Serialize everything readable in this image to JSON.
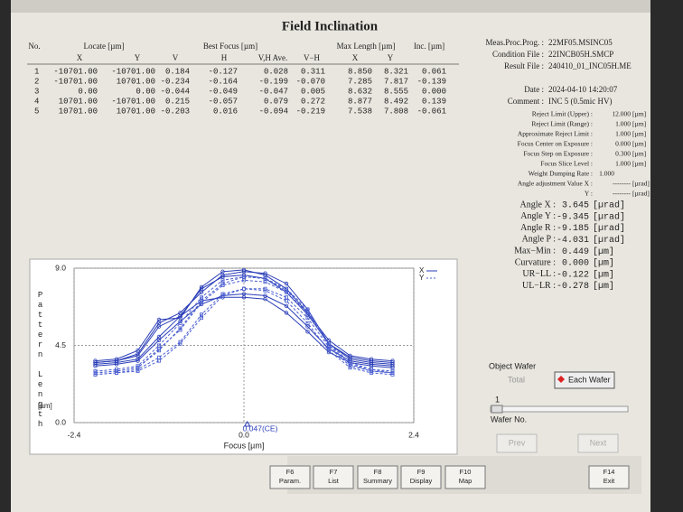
{
  "title": "Field Inclination",
  "table": {
    "headers": [
      "No.",
      "Locate [µm]",
      "Best Focus [µm]",
      "Max Length [µm]",
      "Inc. [µm]"
    ],
    "subheaders": [
      "X",
      "Y",
      "V",
      "H",
      "V,H Ave.",
      "V−H",
      "X",
      "Y"
    ],
    "rows": [
      [
        "1",
        "-10701.00",
        "-10701.00",
        "0.184",
        "-0.127",
        "0.028",
        "0.311",
        "8.850",
        "8.321",
        "0.061"
      ],
      [
        "2",
        "-10701.00",
        "10701.00",
        "-0.234",
        "-0.164",
        "-0.199",
        "-0.070",
        "7.285",
        "7.817",
        "-0.139"
      ],
      [
        "3",
        "0.00",
        "0.00",
        "-0.044",
        "-0.049",
        "-0.047",
        "0.005",
        "8.632",
        "8.555",
        "0.000"
      ],
      [
        "4",
        "10701.00",
        "-10701.00",
        "0.215",
        "-0.057",
        "0.079",
        "0.272",
        "8.877",
        "8.492",
        "0.139"
      ],
      [
        "5",
        "10701.00",
        "10701.00",
        "-0.203",
        "0.016",
        "-0.094",
        "-0.219",
        "7.538",
        "7.808",
        "-0.061"
      ]
    ]
  },
  "info": [
    {
      "label": "Meas.Proc.Prog. :",
      "value": "22MF05.MSINC05"
    },
    {
      "label": "Condition File :",
      "value": "22INCB05H.SMCP"
    },
    {
      "label": "Result File :",
      "value": "240410_01_INC05H.ME"
    },
    {
      "label": "Date :",
      "value": "2024-04-10 14:20:07"
    },
    {
      "label": "Comment :",
      "value": "INC 5 (0.5mic HV)"
    }
  ],
  "params": [
    {
      "label": "Reject Limit (Upper) :",
      "value": "12.000",
      "unit": "[µm]"
    },
    {
      "label": "Reject Limit (Range) :",
      "value": "1.000",
      "unit": "[µm]"
    },
    {
      "label": "Approximate Reject Limit :",
      "value": "1.000",
      "unit": "[µm]"
    },
    {
      "label": "Focus Center on Exposure :",
      "value": "0.000",
      "unit": "[µm]"
    },
    {
      "label": "Focus Step on Exposure :",
      "value": "0.300",
      "unit": "[µm]"
    },
    {
      "label": "Focus Slice Level :",
      "value": "1.000",
      "unit": "[µm]"
    },
    {
      "label": "Weight Dumping Rate :",
      "value": "1.000"
    },
    {
      "label": "Angle adjustment Value X :",
      "value": "--------",
      "unit": "[µrad]"
    },
    {
      "label": "Y :",
      "value": "--------",
      "unit": "[µrad]"
    }
  ],
  "results": [
    {
      "label": "Angle X :",
      "value": "3.645",
      "unit": "[µrad]"
    },
    {
      "label": "Angle Y :",
      "value": "-9.345",
      "unit": "[µrad]"
    },
    {
      "label": "Angle R :",
      "value": "-9.185",
      "unit": "[µrad]"
    },
    {
      "label": "Angle P :",
      "value": "-4.031",
      "unit": "[µrad]"
    },
    {
      "label": "Max−Min :",
      "value": "0.449",
      "unit": "[µm]"
    },
    {
      "label": "Curvature :",
      "value": "0.000",
      "unit": "[µm]"
    },
    {
      "label": "UR−LL :",
      "value": "-0.122",
      "unit": "[µm]"
    },
    {
      "label": "UL−LR :",
      "value": "-0.278",
      "unit": "[µm]"
    }
  ],
  "chart_data": {
    "type": "line",
    "y_label": "Pattern Length",
    "y_unit": "[µm]",
    "x_label": "Focus [µm]",
    "xlim": [
      -2.4,
      2.4
    ],
    "xticks": [
      -2.4,
      {
        "value": 0,
        "label": "0.0"
      },
      2.4
    ],
    "ylim": [
      0,
      9
    ],
    "yticks": [
      {
        "value": 0,
        "label": "0.0"
      },
      4.5,
      {
        "value": 9,
        "label": "9.0"
      }
    ],
    "grid": true,
    "annotation": {
      "value": 0.047,
      "label": "0.047(CE)"
    },
    "x": [
      -2.1,
      -1.8,
      -1.5,
      -1.2,
      -0.9,
      -0.6,
      -0.3,
      0,
      0.3,
      0.6,
      0.9,
      1.2,
      1.5,
      1.8,
      2.1
    ],
    "series": [
      {
        "name": "X",
        "color": "#2a3db8",
        "marker": "circle",
        "dashed": false,
        "curves": [
          [
            3.5,
            3.6,
            4.0,
            5.8,
            6.4,
            7.6,
            8.6,
            8.8,
            8.7,
            8.1,
            6.6,
            4.6,
            3.7,
            3.5,
            3.4
          ],
          [
            3.4,
            3.5,
            3.7,
            5.0,
            6.2,
            7.1,
            7.3,
            7.3,
            7.2,
            6.4,
            5.3,
            4.1,
            3.5,
            3.3,
            3.2
          ],
          [
            3.5,
            3.6,
            3.9,
            5.6,
            6.2,
            7.8,
            8.5,
            8.6,
            8.4,
            7.6,
            6.3,
            4.6,
            3.8,
            3.6,
            3.5
          ],
          [
            3.6,
            3.7,
            4.2,
            6.0,
            6.1,
            7.9,
            8.8,
            8.9,
            8.6,
            7.8,
            6.4,
            4.8,
            3.9,
            3.7,
            3.6
          ],
          [
            3.3,
            3.4,
            3.6,
            4.8,
            5.9,
            6.9,
            7.4,
            7.5,
            7.4,
            6.8,
            5.6,
            4.3,
            3.6,
            3.4,
            3.3
          ]
        ]
      },
      {
        "name": "Y",
        "color": "#4a5ed0",
        "marker": "square",
        "dashed": true,
        "curves": [
          [
            2.9,
            3.0,
            3.2,
            4.3,
            5.4,
            7.0,
            8.0,
            8.3,
            8.2,
            7.6,
            6.4,
            4.5,
            3.4,
            3.0,
            2.9
          ],
          [
            2.8,
            2.9,
            3.0,
            3.6,
            4.6,
            6.1,
            7.4,
            7.8,
            7.8,
            7.3,
            6.1,
            4.4,
            3.3,
            3.0,
            2.9
          ],
          [
            3.0,
            3.1,
            3.3,
            4.5,
            5.8,
            7.3,
            8.3,
            8.5,
            8.4,
            7.8,
            6.6,
            4.6,
            3.5,
            3.1,
            3.0
          ],
          [
            2.9,
            3.0,
            3.2,
            4.2,
            5.5,
            7.1,
            8.1,
            8.5,
            8.4,
            7.7,
            6.5,
            4.5,
            3.4,
            3.1,
            2.9
          ],
          [
            2.8,
            2.9,
            3.1,
            3.8,
            4.7,
            6.3,
            7.5,
            7.8,
            7.7,
            7.1,
            5.8,
            4.2,
            3.2,
            2.9,
            2.8
          ]
        ]
      }
    ]
  },
  "wafer_panel": {
    "title": "Object Wafer",
    "total": "Total",
    "each": "Each Wafer",
    "wafer_number": "1",
    "wafer_label": "Wafer No.",
    "prev": "Prev",
    "next": "Next"
  },
  "function_keys": [
    {
      "key": "F6",
      "label": "Param."
    },
    {
      "key": "F7",
      "label": "List"
    },
    {
      "key": "F8",
      "label": "Summary"
    },
    {
      "key": "F9",
      "label": "Display"
    },
    {
      "key": "F10",
      "label": "Map"
    },
    {
      "key": "F14",
      "label": "Exit"
    }
  ]
}
